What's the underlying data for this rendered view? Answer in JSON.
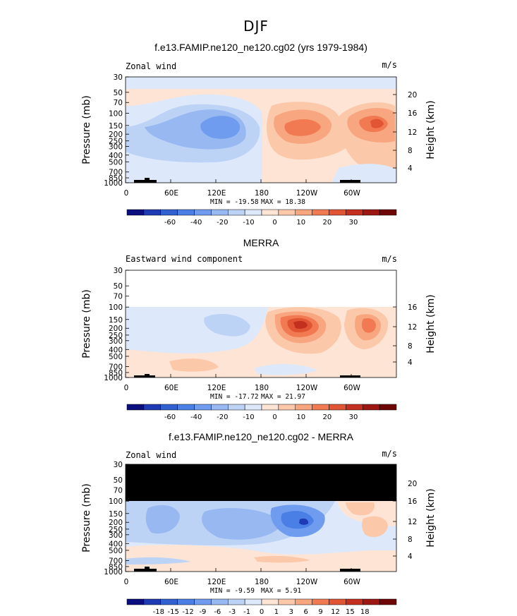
{
  "figure_title": "DJF",
  "chart_data": [
    {
      "type": "contour",
      "title": "f.e13.FAMIP.ne120_ne120.cg02 (yrs 1979-1984)",
      "left_label": "Zonal wind",
      "units": "m/s",
      "ylabel": "Pressure (mb)",
      "ylabel_right": "Height (km)",
      "xticks": [
        "0",
        "60E",
        "120E",
        "180",
        "120W",
        "60W"
      ],
      "yticks": [
        "30",
        "50",
        "70",
        "100",
        "150",
        "200",
        "250",
        "300",
        "400",
        "500",
        "700",
        "850",
        "1000"
      ],
      "height_ticks": [
        "20",
        "16",
        "12",
        "8",
        "4"
      ],
      "min_label": "MIN = -19.58",
      "max_label": "MAX = 18.38",
      "min": -19.58,
      "max": 18.38,
      "colorbar_labels": [
        "-60",
        "-40",
        "-20",
        "-10",
        "0",
        "10",
        "20",
        "30"
      ],
      "masked_region": "none",
      "features": [
        {
          "desc": "easterly core",
          "lon": 125,
          "pressure": 150,
          "value": -19.58
        },
        {
          "desc": "westerly core",
          "lon": 225,
          "pressure": 150,
          "value": 15
        },
        {
          "desc": "westerly core",
          "lon": 290,
          "pressure": 150,
          "value": 18.38
        }
      ]
    },
    {
      "type": "contour",
      "title": "MERRA",
      "left_label": "Eastward wind component",
      "units": "m/s",
      "ylabel": "Pressure (mb)",
      "ylabel_right": "Height (km)",
      "xticks": [
        "0",
        "60E",
        "120E",
        "180",
        "120W",
        "60W"
      ],
      "yticks": [
        "30",
        "50",
        "70",
        "100",
        "150",
        "200",
        "250",
        "300",
        "400",
        "500",
        "700",
        "850",
        "1000"
      ],
      "height_ticks": [
        "16",
        "12",
        "8",
        "4"
      ],
      "min_label": "MIN = -17.72",
      "max_label": "MAX = 21.97",
      "min": -17.72,
      "max": 21.97,
      "colorbar_labels": [
        "-60",
        "-40",
        "-20",
        "-10",
        "0",
        "10",
        "20",
        "30"
      ],
      "masked_region": "above 100 mb (blank)",
      "features": [
        {
          "desc": "easterly core",
          "lon": 115,
          "pressure": 200,
          "value": -17.72
        },
        {
          "desc": "westerly core",
          "lon": 225,
          "pressure": 150,
          "value": 21.97
        },
        {
          "desc": "westerly core",
          "lon": 300,
          "pressure": 150,
          "value": 15
        }
      ]
    },
    {
      "type": "contour",
      "title": "f.e13.FAMIP.ne120_ne120.cg02 - MERRA",
      "left_label": "Zonal wind",
      "units": "m/s",
      "ylabel": "Pressure (mb)",
      "ylabel_right": "Height (km)",
      "xticks": [
        "0",
        "60E",
        "120E",
        "180",
        "120W",
        "60W"
      ],
      "yticks": [
        "30",
        "50",
        "70",
        "100",
        "150",
        "200",
        "250",
        "300",
        "400",
        "500",
        "700",
        "850",
        "1000"
      ],
      "height_ticks": [
        "20",
        "16",
        "12",
        "8",
        "4"
      ],
      "min_label": "MIN =  -9.59",
      "max_label": "MAX =    5.91",
      "min": -9.59,
      "max": 5.91,
      "colorbar_labels": [
        "-18",
        "-15",
        "-12",
        "-9",
        "-6",
        "-3",
        "-1",
        "0",
        "1",
        "3",
        "6",
        "9",
        "12",
        "15",
        "18"
      ],
      "masked_region": "above 100 mb (black)",
      "features": [
        {
          "desc": "negative difference core",
          "lon": 225,
          "pressure": 200,
          "value": -9.59
        },
        {
          "desc": "positive difference",
          "lon": 305,
          "pressure": 170,
          "value": 5.91
        }
      ]
    }
  ],
  "colors": {
    "mask": "#000000",
    "panel1_levels": [
      "#0b0e7e",
      "#1f3ab5",
      "#3160d1",
      "#4a7fe6",
      "#6f9cee",
      "#98b8f2",
      "#bdd3f6",
      "#dde9fb",
      "#fde4d4",
      "#fbc8aa",
      "#f8a67f",
      "#f17a52",
      "#e15434",
      "#c4301f",
      "#9d1812",
      "#6f0606"
    ],
    "panel3_levels": [
      "#0b0e7e",
      "#1f3ab5",
      "#3160d1",
      "#4a7fe6",
      "#6f9cee",
      "#98b8f2",
      "#bdd3f6",
      "#dde9fb",
      "#fde4d4",
      "#fbc8aa",
      "#f8a67f",
      "#f17a52",
      "#e15434",
      "#c4301f",
      "#9d1812",
      "#6f0606"
    ]
  }
}
